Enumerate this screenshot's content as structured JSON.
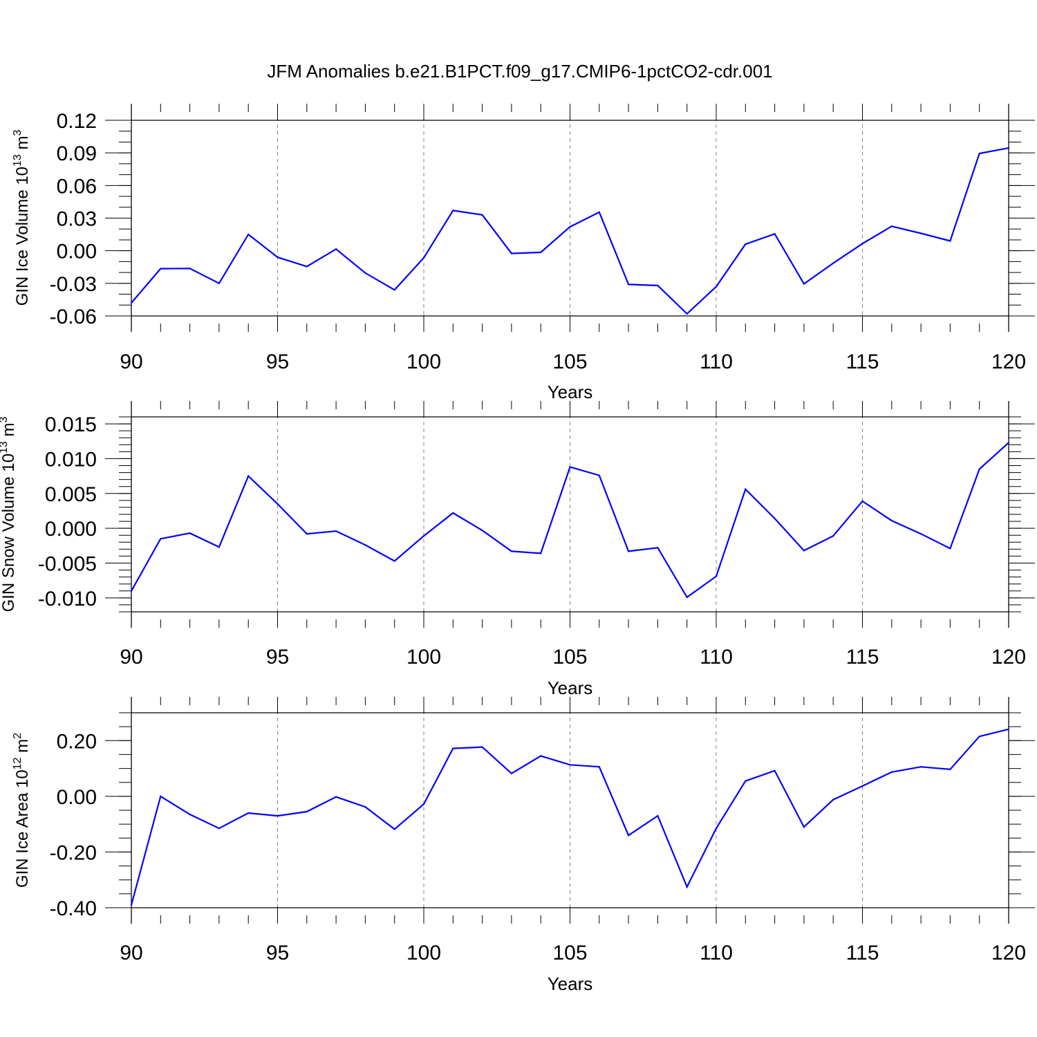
{
  "title": "JFM Anomalies b.e21.B1PCT.f09_g17.CMIP6-1pctCO2-cdr.001",
  "colors": {
    "line": "#0000ff",
    "axis": "#000000",
    "grid": "#808080",
    "background": "#ffffff"
  },
  "chart_data": [
    {
      "type": "line",
      "ylabel_main": "GIN Ice Volume 10",
      "ylabel_exp": "13",
      "ylabel_unit": " m",
      "ylabel_unit_exp": "3",
      "xlabel": "Years",
      "xlim": [
        90,
        120
      ],
      "ylim": [
        -0.06,
        0.12
      ],
      "yticks": [
        -0.06,
        -0.03,
        0.0,
        0.03,
        0.06,
        0.09,
        0.12
      ],
      "ytick_labels": [
        "-0.06",
        "-0.03",
        "0.00",
        "0.03",
        "0.06",
        "0.09",
        "0.12"
      ],
      "yminor_step": 0.01,
      "xticks": [
        90,
        95,
        100,
        105,
        110,
        115,
        120
      ],
      "xtick_labels": [
        "90",
        "95",
        "100",
        "105",
        "110",
        "115",
        "120"
      ],
      "x": [
        90,
        91,
        92,
        93,
        94,
        95,
        96,
        97,
        98,
        99,
        100,
        101,
        102,
        103,
        104,
        105,
        106,
        107,
        108,
        109,
        110,
        111,
        112,
        113,
        114,
        115,
        116,
        117,
        118,
        119,
        120
      ],
      "values": [
        -0.048,
        -0.0165,
        -0.0163,
        -0.03,
        0.015,
        -0.006,
        -0.0145,
        0.0015,
        -0.0205,
        -0.036,
        -0.0065,
        0.037,
        0.033,
        -0.0025,
        -0.0015,
        0.022,
        0.0355,
        -0.031,
        -0.032,
        -0.058,
        -0.033,
        0.006,
        0.0155,
        -0.0305,
        -0.0115,
        0.0065,
        0.0225,
        0.016,
        0.009,
        0.0895,
        0.0945
      ]
    },
    {
      "type": "line",
      "ylabel_main": "GIN Snow Volume 10",
      "ylabel_exp": "13",
      "ylabel_unit": " m",
      "ylabel_unit_exp": "3",
      "xlabel": "Years",
      "xlim": [
        90,
        120
      ],
      "ylim": [
        -0.012,
        0.016
      ],
      "yticks": [
        -0.01,
        -0.005,
        0.0,
        0.005,
        0.01,
        0.015
      ],
      "ytick_labels": [
        "-0.010",
        "-0.005",
        "0.000",
        "0.005",
        "0.010",
        "0.015"
      ],
      "yminor_step": 0.001,
      "xticks": [
        90,
        95,
        100,
        105,
        110,
        115,
        120
      ],
      "xtick_labels": [
        "90",
        "95",
        "100",
        "105",
        "110",
        "115",
        "120"
      ],
      "x": [
        90,
        91,
        92,
        93,
        94,
        95,
        96,
        97,
        98,
        99,
        100,
        101,
        102,
        103,
        104,
        105,
        106,
        107,
        108,
        109,
        110,
        111,
        112,
        113,
        114,
        115,
        116,
        117,
        118,
        119,
        120
      ],
      "values": [
        -0.009,
        -0.0015,
        -0.0007,
        -0.0027,
        0.0075,
        0.0035,
        -0.0008,
        -0.0004,
        -0.0024,
        -0.0047,
        -0.0011,
        0.0022,
        -0.0003,
        -0.0033,
        -0.0036,
        0.0088,
        0.0076,
        -0.0033,
        -0.0028,
        -0.0099,
        -0.0069,
        0.0056,
        0.0014,
        -0.0032,
        -0.0011,
        0.0039,
        0.0011,
        -0.0008,
        -0.0029,
        0.0085,
        0.0123
      ]
    },
    {
      "type": "line",
      "ylabel_main": "GIN Ice Area 10",
      "ylabel_exp": "12",
      "ylabel_unit": " m",
      "ylabel_unit_exp": "2",
      "xlabel": "Years",
      "xlim": [
        90,
        120
      ],
      "ylim": [
        -0.4,
        0.3
      ],
      "yticks": [
        -0.4,
        -0.2,
        0.0,
        0.2
      ],
      "ytick_labels": [
        "-0.40",
        "-0.20",
        "0.00",
        "0.20"
      ],
      "yminor_step": 0.05,
      "xticks": [
        90,
        95,
        100,
        105,
        110,
        115,
        120
      ],
      "xtick_labels": [
        "90",
        "95",
        "100",
        "105",
        "110",
        "115",
        "120"
      ],
      "x": [
        90,
        91,
        92,
        93,
        94,
        95,
        96,
        97,
        98,
        99,
        100,
        101,
        102,
        103,
        104,
        105,
        106,
        107,
        108,
        109,
        110,
        111,
        112,
        113,
        114,
        115,
        116,
        117,
        118,
        119,
        120
      ],
      "values": [
        -0.39,
        0.0,
        -0.065,
        -0.115,
        -0.06,
        -0.07,
        -0.055,
        -0.002,
        -0.038,
        -0.118,
        -0.028,
        0.172,
        0.177,
        0.082,
        0.145,
        0.113,
        0.106,
        -0.14,
        -0.07,
        -0.325,
        -0.115,
        0.055,
        0.092,
        -0.11,
        -0.012,
        0.037,
        0.087,
        0.106,
        0.097,
        0.215,
        0.241
      ]
    }
  ]
}
